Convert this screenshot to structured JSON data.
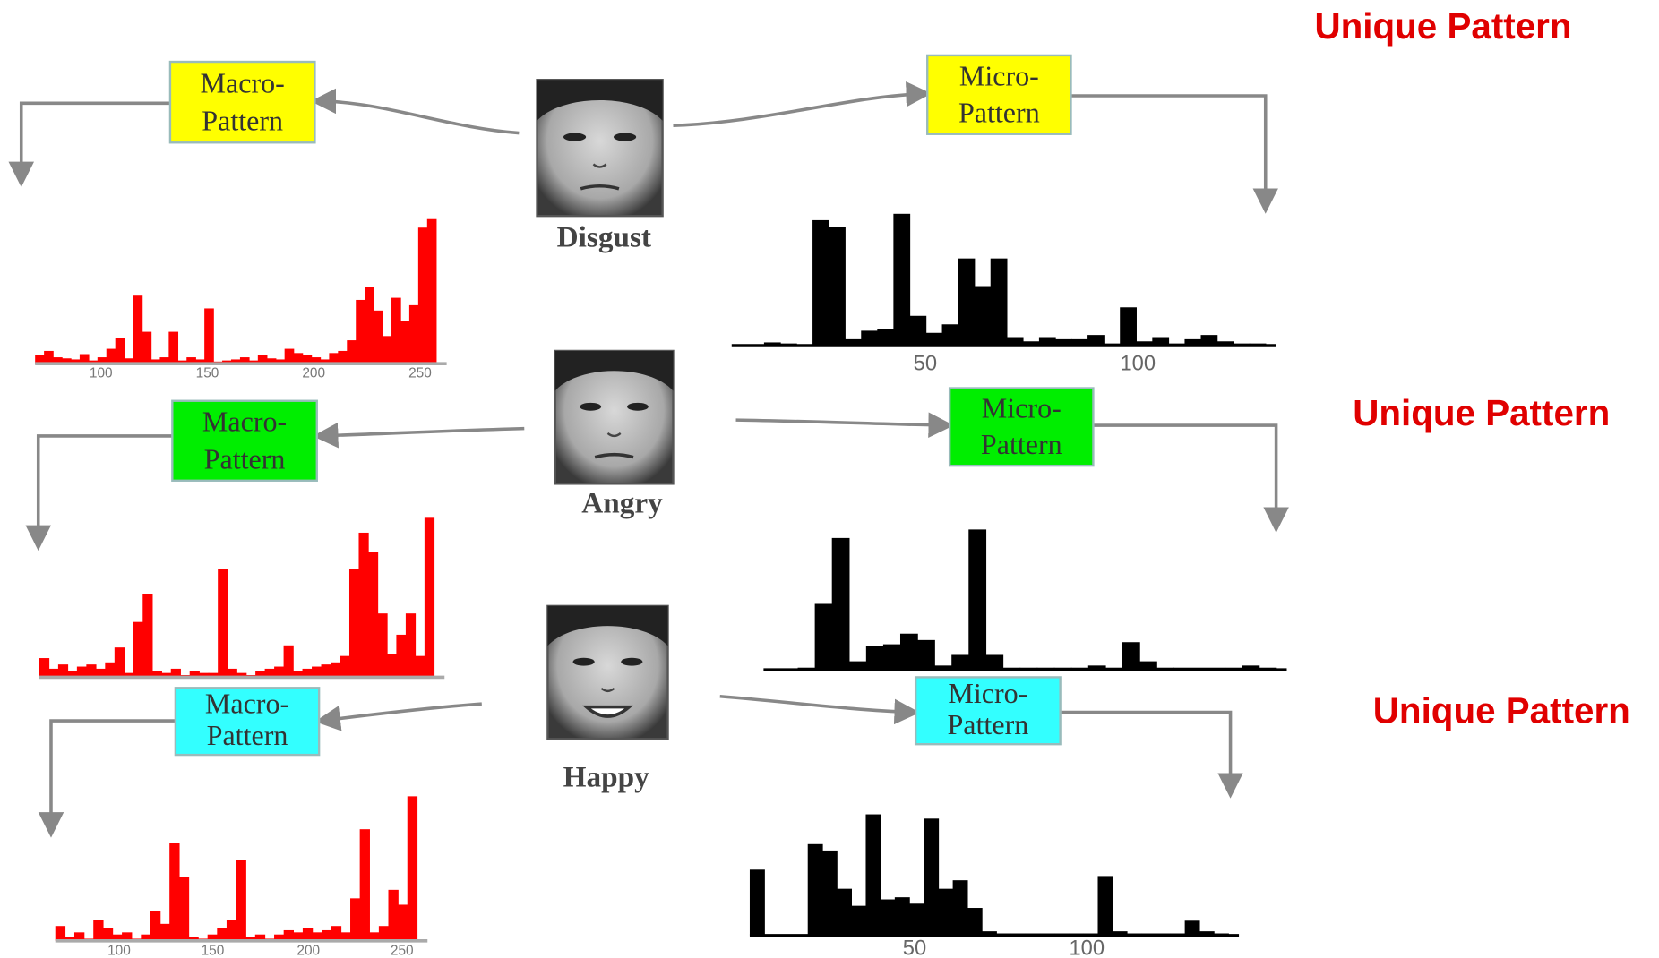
{
  "rows": [
    {
      "emotion": "Disgust",
      "unique": "Unique Pattern",
      "macro": {
        "line1": "Macro-",
        "line2": "Pattern"
      },
      "micro": {
        "line1": "Micro-",
        "line2": "Pattern"
      },
      "macro_ticks": [
        "100",
        "150",
        "200",
        "250"
      ],
      "micro_ticks": [
        "50",
        "100"
      ]
    },
    {
      "emotion": "Angry",
      "unique": "Unique Pattern",
      "macro": {
        "line1": "Macro-",
        "line2": "Pattern"
      },
      "micro": {
        "line1": "Micro-",
        "line2": "Pattern"
      }
    },
    {
      "emotion": "Happy",
      "unique": "Unique Pattern",
      "macro": {
        "line1": "Macro-",
        "line2": "Pattern"
      },
      "micro": {
        "line1": "Micro-",
        "line2": "Pattern"
      },
      "macro_ticks": [
        "100",
        "150",
        "200",
        "250"
      ],
      "micro_ticks": [
        "50",
        "100"
      ]
    }
  ]
}
